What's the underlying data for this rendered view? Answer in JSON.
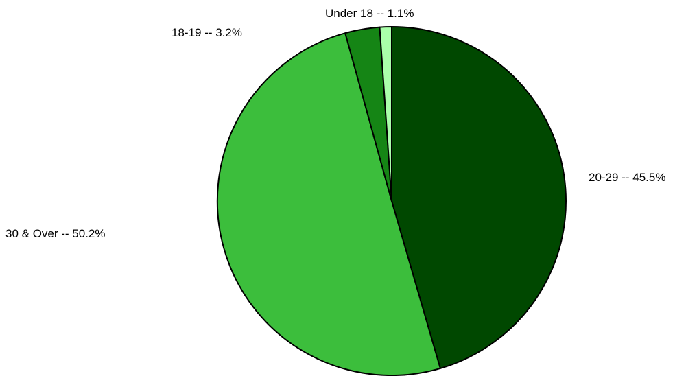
{
  "chart_data": {
    "type": "pie",
    "title": "",
    "slices": [
      {
        "label": "20-29 -- 45.5%",
        "category": "20-29",
        "value": 45.5,
        "color": "#004800"
      },
      {
        "label": "30 & Over -- 50.2%",
        "category": "30 & Over",
        "value": 50.2,
        "color": "#3cbe3c"
      },
      {
        "label": "18-19 -- 3.2%",
        "category": "18-19",
        "value": 3.2,
        "color": "#158515"
      },
      {
        "label": "Under 18 -- 1.1%",
        "category": "Under 18",
        "value": 1.1,
        "color": "#aaffaa"
      }
    ],
    "start": "top",
    "direction": "clockwise",
    "legend": "none",
    "slice_border_color": "#000000"
  }
}
